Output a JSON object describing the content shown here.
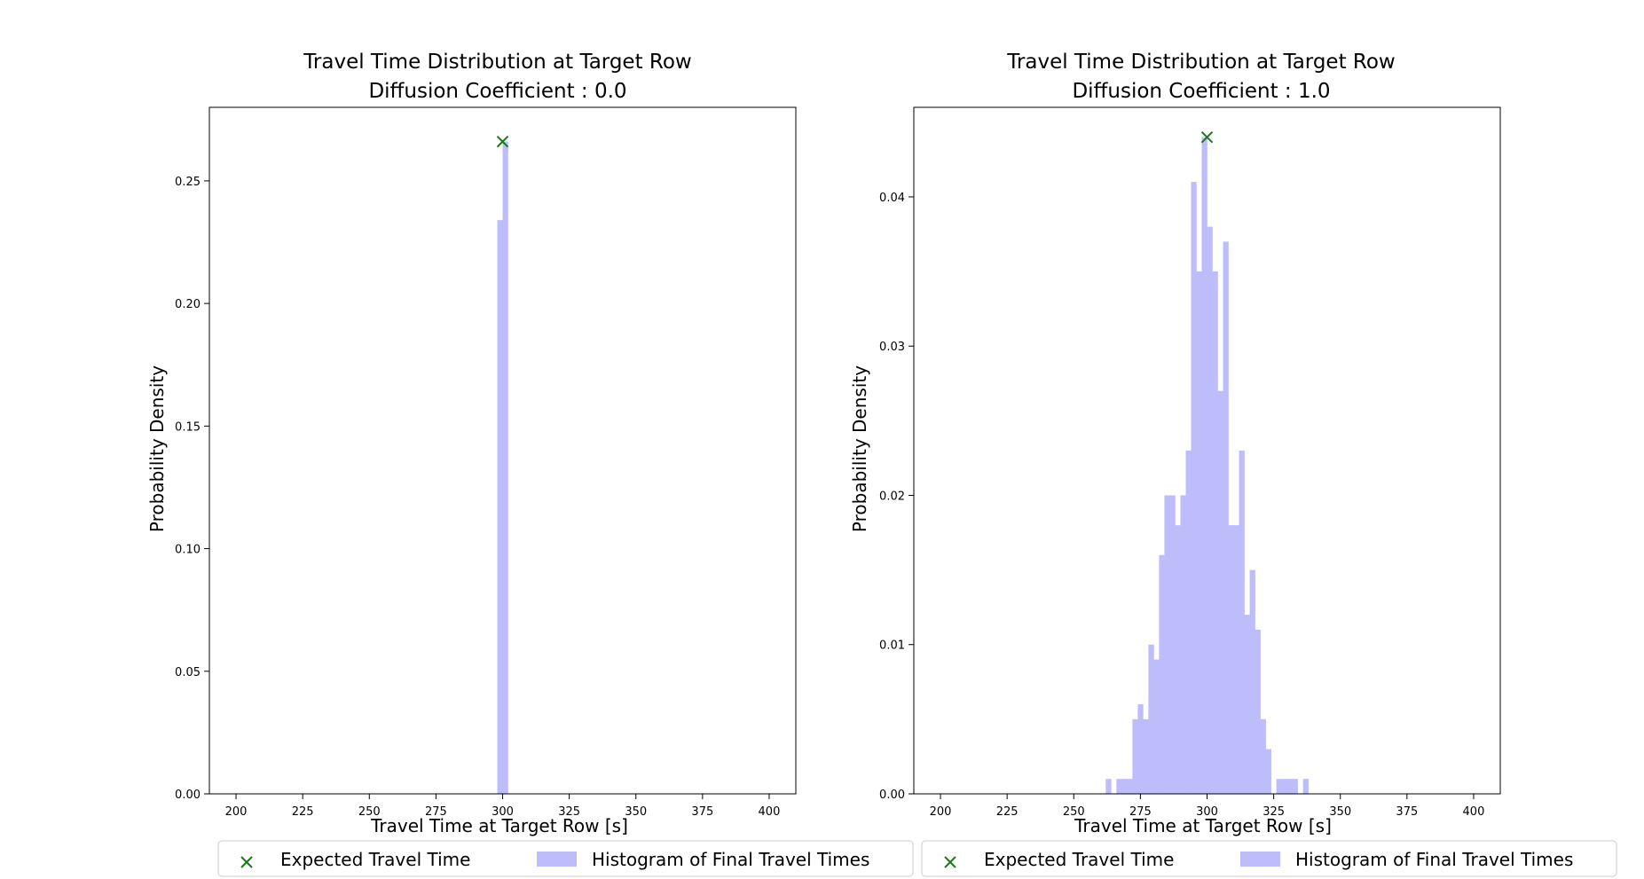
{
  "chart_data": [
    {
      "type": "bar",
      "title": "Travel Time Distribution at Target Row",
      "subtitle": "Diffusion Coefficient : 0.0",
      "xlabel": "Travel Time at Target Row [s]",
      "ylabel": "Probability Density",
      "xlim": [
        190,
        410
      ],
      "ylim": [
        0,
        0.28
      ],
      "xticks": [
        "200",
        "225",
        "250",
        "275",
        "300",
        "325",
        "350",
        "375",
        "400"
      ],
      "yticks": [
        "0.00",
        "0.05",
        "0.10",
        "0.15",
        "0.20",
        "0.25"
      ],
      "bin_width": 2,
      "color": "#bdbdfc",
      "marker_color": "#1a7a1a",
      "grid": false,
      "legend_position": "bottom",
      "expected": {
        "x": 300,
        "y": 0.266,
        "name": "Expected Travel Time"
      },
      "series": [
        {
          "name": "Histogram of Final Travel Times",
          "bins": [
            {
              "x0": 298,
              "x1": 300,
              "y": 0.234
            },
            {
              "x0": 300,
              "x1": 302,
              "y": 0.266
            }
          ]
        }
      ],
      "legend": [
        "Expected Travel Time",
        "Histogram of Final Travel Times"
      ]
    },
    {
      "type": "bar",
      "title": "Travel Time Distribution at Target Row",
      "subtitle": "Diffusion Coefficient : 1.0",
      "xlabel": "Travel Time at Target Row [s]",
      "ylabel": "Probability Density",
      "xlim": [
        190,
        410
      ],
      "ylim": [
        0,
        0.046
      ],
      "xticks": [
        "200",
        "225",
        "250",
        "275",
        "300",
        "325",
        "350",
        "375",
        "400"
      ],
      "yticks": [
        "0.00",
        "0.01",
        "0.02",
        "0.03",
        "0.04"
      ],
      "bin_width": 2,
      "color": "#bdbdfc",
      "marker_color": "#1a7a1a",
      "grid": false,
      "legend_position": "bottom",
      "expected": {
        "x": 300,
        "y": 0.044,
        "name": "Expected Travel Time"
      },
      "series": [
        {
          "name": "Histogram of Final Travel Times",
          "bins": [
            {
              "x0": 262,
              "x1": 264,
              "y": 0.001
            },
            {
              "x0": 266,
              "x1": 268,
              "y": 0.001
            },
            {
              "x0": 268,
              "x1": 270,
              "y": 0.001
            },
            {
              "x0": 270,
              "x1": 272,
              "y": 0.001
            },
            {
              "x0": 272,
              "x1": 274,
              "y": 0.005
            },
            {
              "x0": 274,
              "x1": 276,
              "y": 0.006
            },
            {
              "x0": 276,
              "x1": 278,
              "y": 0.005
            },
            {
              "x0": 278,
              "x1": 280,
              "y": 0.01
            },
            {
              "x0": 280,
              "x1": 282,
              "y": 0.009
            },
            {
              "x0": 282,
              "x1": 284,
              "y": 0.016
            },
            {
              "x0": 284,
              "x1": 286,
              "y": 0.02
            },
            {
              "x0": 286,
              "x1": 288,
              "y": 0.02
            },
            {
              "x0": 288,
              "x1": 290,
              "y": 0.018
            },
            {
              "x0": 290,
              "x1": 292,
              "y": 0.02
            },
            {
              "x0": 292,
              "x1": 294,
              "y": 0.023
            },
            {
              "x0": 294,
              "x1": 296,
              "y": 0.041
            },
            {
              "x0": 296,
              "x1": 298,
              "y": 0.035
            },
            {
              "x0": 298,
              "x1": 300,
              "y": 0.044
            },
            {
              "x0": 300,
              "x1": 302,
              "y": 0.038
            },
            {
              "x0": 302,
              "x1": 304,
              "y": 0.035
            },
            {
              "x0": 304,
              "x1": 306,
              "y": 0.027
            },
            {
              "x0": 306,
              "x1": 308,
              "y": 0.037
            },
            {
              "x0": 308,
              "x1": 310,
              "y": 0.018
            },
            {
              "x0": 310,
              "x1": 312,
              "y": 0.018
            },
            {
              "x0": 312,
              "x1": 314,
              "y": 0.023
            },
            {
              "x0": 314,
              "x1": 316,
              "y": 0.012
            },
            {
              "x0": 316,
              "x1": 318,
              "y": 0.015
            },
            {
              "x0": 318,
              "x1": 320,
              "y": 0.011
            },
            {
              "x0": 320,
              "x1": 322,
              "y": 0.005
            },
            {
              "x0": 322,
              "x1": 324,
              "y": 0.003
            },
            {
              "x0": 326,
              "x1": 328,
              "y": 0.001
            },
            {
              "x0": 328,
              "x1": 330,
              "y": 0.001
            },
            {
              "x0": 330,
              "x1": 332,
              "y": 0.001
            },
            {
              "x0": 332,
              "x1": 334,
              "y": 0.001
            },
            {
              "x0": 336,
              "x1": 338,
              "y": 0.001
            }
          ]
        }
      ],
      "legend": [
        "Expected Travel Time",
        "Histogram of Final Travel Times"
      ]
    }
  ]
}
